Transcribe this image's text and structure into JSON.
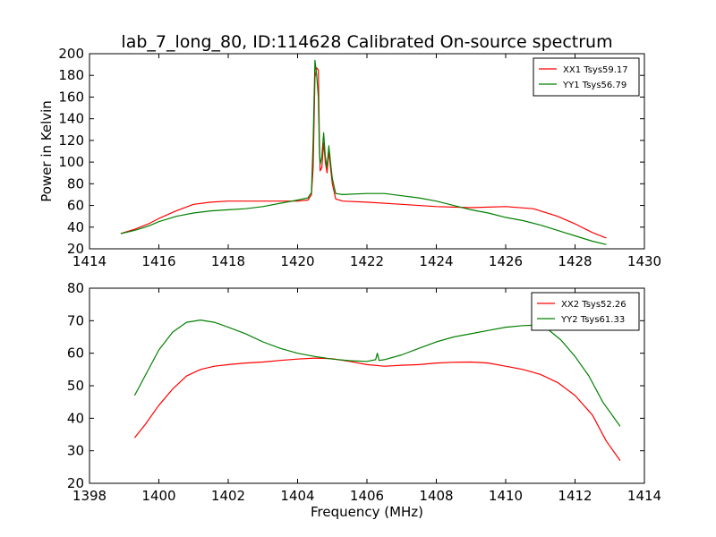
{
  "figure": {
    "title": "lab_7_long_80, ID:114628 Calibrated On-source spectrum"
  },
  "chart_data": [
    {
      "type": "line",
      "title": "lab_7_long_80, ID:114628 Calibrated On-source spectrum",
      "xlabel": "",
      "ylabel": "Power in Kelvin",
      "xlim": [
        1414,
        1430
      ],
      "ylim": [
        20,
        200
      ],
      "xticks": [
        1414,
        1416,
        1418,
        1420,
        1422,
        1424,
        1426,
        1428,
        1430
      ],
      "yticks": [
        20,
        40,
        60,
        80,
        100,
        120,
        140,
        160,
        180,
        200
      ],
      "grid": false,
      "legend_position": "top-right",
      "series": [
        {
          "name": "XX1 Tsys59.17",
          "color": "#ff0000",
          "points": [
            [
              1414.9,
              34
            ],
            [
              1415.3,
              38
            ],
            [
              1415.7,
              43
            ],
            [
              1416.0,
              48
            ],
            [
              1416.5,
              55
            ],
            [
              1417.0,
              61
            ],
            [
              1417.5,
              63
            ],
            [
              1418.0,
              64
            ],
            [
              1418.5,
              64
            ],
            [
              1419.0,
              64
            ],
            [
              1419.5,
              64
            ],
            [
              1420.0,
              64
            ],
            [
              1420.3,
              65
            ],
            [
              1420.4,
              70
            ],
            [
              1420.45,
              95
            ],
            [
              1420.5,
              178
            ],
            [
              1420.55,
              187
            ],
            [
              1420.6,
              185
            ],
            [
              1420.63,
              120
            ],
            [
              1420.65,
              92
            ],
            [
              1420.7,
              95
            ],
            [
              1420.75,
              118
            ],
            [
              1420.8,
              100
            ],
            [
              1420.85,
              90
            ],
            [
              1420.9,
              110
            ],
            [
              1420.95,
              95
            ],
            [
              1421.0,
              80
            ],
            [
              1421.1,
              66
            ],
            [
              1421.3,
              64
            ],
            [
              1422.0,
              63
            ],
            [
              1423.0,
              61
            ],
            [
              1424.0,
              59
            ],
            [
              1425.0,
              58
            ],
            [
              1426.0,
              59
            ],
            [
              1426.8,
              57
            ],
            [
              1427.5,
              50
            ],
            [
              1428.0,
              43
            ],
            [
              1428.5,
              35
            ],
            [
              1428.9,
              30
            ]
          ]
        },
        {
          "name": "YY1 Tsys56.79",
          "color": "#008000",
          "points": [
            [
              1414.9,
              34
            ],
            [
              1415.3,
              37
            ],
            [
              1415.7,
              41
            ],
            [
              1416.0,
              45
            ],
            [
              1416.5,
              50
            ],
            [
              1417.0,
              53
            ],
            [
              1417.5,
              55
            ],
            [
              1418.0,
              56
            ],
            [
              1418.5,
              57
            ],
            [
              1419.0,
              59
            ],
            [
              1419.5,
              62
            ],
            [
              1420.0,
              65
            ],
            [
              1420.3,
              67
            ],
            [
              1420.4,
              72
            ],
            [
              1420.45,
              120
            ],
            [
              1420.5,
              194
            ],
            [
              1420.55,
              180
            ],
            [
              1420.6,
              160
            ],
            [
              1420.63,
              110
            ],
            [
              1420.65,
              98
            ],
            [
              1420.7,
              105
            ],
            [
              1420.75,
              127
            ],
            [
              1420.8,
              105
            ],
            [
              1420.85,
              95
            ],
            [
              1420.9,
              115
            ],
            [
              1420.95,
              100
            ],
            [
              1421.0,
              85
            ],
            [
              1421.1,
              71
            ],
            [
              1421.3,
              70
            ],
            [
              1422.0,
              71
            ],
            [
              1422.5,
              71
            ],
            [
              1423.0,
              69
            ],
            [
              1423.5,
              67
            ],
            [
              1424.0,
              64
            ],
            [
              1424.5,
              60
            ],
            [
              1425.0,
              56
            ],
            [
              1425.5,
              53
            ],
            [
              1426.0,
              49
            ],
            [
              1426.5,
              46
            ],
            [
              1427.0,
              42
            ],
            [
              1427.5,
              37
            ],
            [
              1428.0,
              32
            ],
            [
              1428.5,
              27
            ],
            [
              1428.9,
              24
            ]
          ]
        }
      ]
    },
    {
      "type": "line",
      "title": "",
      "xlabel": "Frequency (MHz)",
      "ylabel": "",
      "xlim": [
        1398,
        1414
      ],
      "ylim": [
        20,
        80
      ],
      "xticks": [
        1398,
        1400,
        1402,
        1404,
        1406,
        1408,
        1410,
        1412,
        1414
      ],
      "yticks": [
        20,
        30,
        40,
        50,
        60,
        70,
        80
      ],
      "grid": false,
      "legend_position": "top-right",
      "series": [
        {
          "name": "XX2 Tsys52.26",
          "color": "#ff0000",
          "points": [
            [
              1399.3,
              34
            ],
            [
              1399.6,
              38
            ],
            [
              1400.0,
              44
            ],
            [
              1400.4,
              49
            ],
            [
              1400.8,
              53
            ],
            [
              1401.2,
              55
            ],
            [
              1401.6,
              56
            ],
            [
              1402.0,
              56.5
            ],
            [
              1402.5,
              57
            ],
            [
              1403.0,
              57.3
            ],
            [
              1403.5,
              57.8
            ],
            [
              1404.0,
              58.2
            ],
            [
              1404.5,
              58.5
            ],
            [
              1405.0,
              58.3
            ],
            [
              1405.5,
              57.5
            ],
            [
              1406.0,
              56.5
            ],
            [
              1406.5,
              56
            ],
            [
              1407.0,
              56.3
            ],
            [
              1407.5,
              56.5
            ],
            [
              1408.0,
              57
            ],
            [
              1408.5,
              57.2
            ],
            [
              1409.0,
              57.3
            ],
            [
              1409.5,
              57
            ],
            [
              1410.0,
              56
            ],
            [
              1410.5,
              55
            ],
            [
              1411.0,
              53.5
            ],
            [
              1411.5,
              51
            ],
            [
              1412.0,
              47
            ],
            [
              1412.5,
              41
            ],
            [
              1412.9,
              33
            ],
            [
              1413.3,
              27
            ]
          ]
        },
        {
          "name": "YY2 Tsys61.33",
          "color": "#008000",
          "points": [
            [
              1399.3,
              47
            ],
            [
              1399.6,
              53
            ],
            [
              1400.0,
              61
            ],
            [
              1400.4,
              66.5
            ],
            [
              1400.8,
              69.5
            ],
            [
              1401.2,
              70.2
            ],
            [
              1401.6,
              69.5
            ],
            [
              1402.0,
              68
            ],
            [
              1402.5,
              66
            ],
            [
              1403.0,
              63.5
            ],
            [
              1403.5,
              61.5
            ],
            [
              1404.0,
              60
            ],
            [
              1404.5,
              59
            ],
            [
              1405.0,
              58.2
            ],
            [
              1405.5,
              57.7
            ],
            [
              1406.0,
              57.5
            ],
            [
              1406.25,
              58
            ],
            [
              1406.3,
              60
            ],
            [
              1406.35,
              57.8
            ],
            [
              1406.5,
              58
            ],
            [
              1407.0,
              59.5
            ],
            [
              1407.5,
              61.5
            ],
            [
              1408.0,
              63.5
            ],
            [
              1408.5,
              65
            ],
            [
              1409.0,
              66
            ],
            [
              1409.5,
              67
            ],
            [
              1410.0,
              68
            ],
            [
              1410.5,
              68.5
            ],
            [
              1410.8,
              68.6
            ],
            [
              1411.2,
              67.5
            ],
            [
              1411.6,
              64
            ],
            [
              1412.0,
              59
            ],
            [
              1412.4,
              53
            ],
            [
              1412.8,
              45
            ],
            [
              1413.3,
              37.5
            ]
          ]
        }
      ]
    }
  ]
}
